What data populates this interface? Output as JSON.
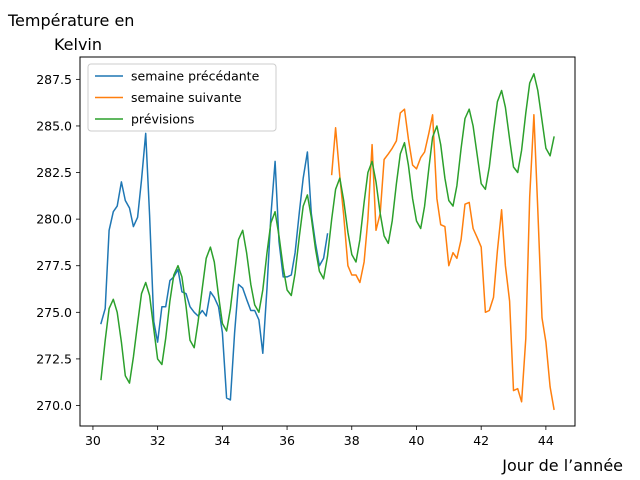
{
  "chart_data": {
    "type": "line",
    "ylabel_line1": "Température en",
    "ylabel_line2": "Kelvin",
    "xlabel": "Jour de l’année",
    "xlim": [
      29.6,
      44.9
    ],
    "ylim": [
      268.9,
      288.7
    ],
    "xticks": [
      30,
      32,
      34,
      36,
      38,
      40,
      42,
      44
    ],
    "yticks": [
      270.0,
      272.5,
      275.0,
      277.5,
      280.0,
      282.5,
      285.0,
      287.5
    ],
    "grid": false,
    "legend": "top-left",
    "series": [
      {
        "name": "semaine précédante",
        "color": "#1f77b4",
        "points": [
          [
            30.25,
            274.4
          ],
          [
            30.38,
            275.2
          ],
          [
            30.5,
            279.4
          ],
          [
            30.63,
            280.4
          ],
          [
            30.75,
            280.7
          ],
          [
            30.88,
            282.0
          ],
          [
            31.0,
            281.0
          ],
          [
            31.13,
            280.6
          ],
          [
            31.25,
            279.6
          ],
          [
            31.38,
            280.1
          ],
          [
            31.5,
            282.1
          ],
          [
            31.63,
            284.6
          ],
          [
            31.75,
            280.2
          ],
          [
            31.88,
            274.5
          ],
          [
            32.0,
            273.4
          ],
          [
            32.13,
            275.3
          ],
          [
            32.25,
            275.3
          ],
          [
            32.38,
            276.7
          ],
          [
            32.5,
            276.9
          ],
          [
            32.63,
            277.3
          ],
          [
            32.75,
            276.1
          ],
          [
            32.88,
            276.0
          ],
          [
            33.0,
            275.3
          ],
          [
            33.13,
            275.0
          ],
          [
            33.25,
            274.8
          ],
          [
            33.38,
            275.1
          ],
          [
            33.5,
            274.8
          ],
          [
            33.63,
            276.1
          ],
          [
            33.75,
            275.8
          ],
          [
            33.88,
            275.3
          ],
          [
            34.0,
            273.9
          ],
          [
            34.13,
            270.4
          ],
          [
            34.25,
            270.3
          ],
          [
            34.38,
            273.9
          ],
          [
            34.5,
            276.5
          ],
          [
            34.63,
            276.3
          ],
          [
            34.75,
            275.7
          ],
          [
            34.88,
            275.1
          ],
          [
            35.0,
            275.1
          ],
          [
            35.13,
            274.6
          ],
          [
            35.25,
            272.8
          ],
          [
            35.38,
            276.3
          ],
          [
            35.5,
            280.2
          ],
          [
            35.63,
            283.1
          ],
          [
            35.75,
            278.8
          ],
          [
            35.88,
            276.9
          ],
          [
            36.0,
            276.9
          ],
          [
            36.13,
            277.0
          ],
          [
            36.25,
            278.2
          ],
          [
            36.38,
            280.4
          ],
          [
            36.5,
            282.2
          ],
          [
            36.63,
            283.6
          ],
          [
            36.75,
            280.3
          ],
          [
            36.88,
            278.7
          ],
          [
            37.0,
            277.5
          ],
          [
            37.13,
            277.9
          ],
          [
            37.25,
            279.2
          ]
        ]
      },
      {
        "name": "semaine suivante",
        "color": "#ff7f0e",
        "points": [
          [
            37.38,
            282.4
          ],
          [
            37.5,
            284.9
          ],
          [
            37.63,
            282.3
          ],
          [
            37.75,
            280.2
          ],
          [
            37.88,
            277.5
          ],
          [
            38.0,
            277.0
          ],
          [
            38.13,
            277.0
          ],
          [
            38.25,
            276.6
          ],
          [
            38.38,
            277.7
          ],
          [
            38.5,
            280.0
          ],
          [
            38.63,
            284.0
          ],
          [
            38.75,
            279.4
          ],
          [
            38.88,
            280.3
          ],
          [
            39.0,
            283.2
          ],
          [
            39.13,
            283.5
          ],
          [
            39.25,
            283.8
          ],
          [
            39.38,
            284.2
          ],
          [
            39.5,
            285.7
          ],
          [
            39.63,
            285.9
          ],
          [
            39.75,
            284.3
          ],
          [
            39.88,
            282.9
          ],
          [
            40.0,
            282.7
          ],
          [
            40.13,
            283.3
          ],
          [
            40.25,
            283.6
          ],
          [
            40.38,
            284.6
          ],
          [
            40.5,
            285.6
          ],
          [
            40.63,
            281.1
          ],
          [
            40.75,
            279.7
          ],
          [
            40.88,
            279.6
          ],
          [
            41.0,
            277.5
          ],
          [
            41.13,
            278.2
          ],
          [
            41.25,
            277.9
          ],
          [
            41.38,
            278.9
          ],
          [
            41.5,
            280.8
          ],
          [
            41.63,
            280.9
          ],
          [
            41.75,
            279.5
          ],
          [
            41.88,
            279.0
          ],
          [
            42.0,
            278.5
          ],
          [
            42.13,
            275.0
          ],
          [
            42.25,
            275.1
          ],
          [
            42.38,
            275.8
          ],
          [
            42.5,
            278.3
          ],
          [
            42.63,
            280.5
          ],
          [
            42.75,
            277.5
          ],
          [
            42.88,
            275.6
          ],
          [
            43.0,
            270.8
          ],
          [
            43.13,
            270.9
          ],
          [
            43.25,
            270.2
          ],
          [
            43.38,
            273.6
          ],
          [
            43.5,
            281.2
          ],
          [
            43.63,
            285.6
          ],
          [
            43.75,
            280.5
          ],
          [
            43.88,
            274.7
          ],
          [
            44.0,
            273.4
          ],
          [
            44.13,
            271.0
          ],
          [
            44.25,
            269.8
          ]
        ]
      },
      {
        "name": "prévisions",
        "color": "#2ca02c",
        "points": [
          [
            30.25,
            271.4
          ],
          [
            30.38,
            273.5
          ],
          [
            30.5,
            275.2
          ],
          [
            30.63,
            275.7
          ],
          [
            30.75,
            275.0
          ],
          [
            30.88,
            273.4
          ],
          [
            31.0,
            271.6
          ],
          [
            31.13,
            271.2
          ],
          [
            31.25,
            272.6
          ],
          [
            31.38,
            274.4
          ],
          [
            31.5,
            276.0
          ],
          [
            31.63,
            276.6
          ],
          [
            31.75,
            275.9
          ],
          [
            31.88,
            274.1
          ],
          [
            32.0,
            272.5
          ],
          [
            32.13,
            272.2
          ],
          [
            32.25,
            273.6
          ],
          [
            32.38,
            275.6
          ],
          [
            32.5,
            277.0
          ],
          [
            32.63,
            277.5
          ],
          [
            32.75,
            276.9
          ],
          [
            32.88,
            275.3
          ],
          [
            33.0,
            273.5
          ],
          [
            33.13,
            273.1
          ],
          [
            33.25,
            274.5
          ],
          [
            33.38,
            276.3
          ],
          [
            33.5,
            277.9
          ],
          [
            33.63,
            278.5
          ],
          [
            33.75,
            277.7
          ],
          [
            33.88,
            275.9
          ],
          [
            34.0,
            274.4
          ],
          [
            34.13,
            274.0
          ],
          [
            34.25,
            275.2
          ],
          [
            34.38,
            277.1
          ],
          [
            34.5,
            278.9
          ],
          [
            34.63,
            279.4
          ],
          [
            34.75,
            278.2
          ],
          [
            34.88,
            276.5
          ],
          [
            35.0,
            275.4
          ],
          [
            35.13,
            275.0
          ],
          [
            35.25,
            276.2
          ],
          [
            35.38,
            278.2
          ],
          [
            35.5,
            279.8
          ],
          [
            35.63,
            280.4
          ],
          [
            35.75,
            279.1
          ],
          [
            35.88,
            277.4
          ],
          [
            36.0,
            276.2
          ],
          [
            36.13,
            275.9
          ],
          [
            36.25,
            277.1
          ],
          [
            36.38,
            279.1
          ],
          [
            36.5,
            280.7
          ],
          [
            36.63,
            281.3
          ],
          [
            36.75,
            280.1
          ],
          [
            36.88,
            278.4
          ],
          [
            37.0,
            277.2
          ],
          [
            37.13,
            276.8
          ],
          [
            37.25,
            278.0
          ],
          [
            37.38,
            280.0
          ],
          [
            37.5,
            281.6
          ],
          [
            37.63,
            282.2
          ],
          [
            37.75,
            281.0
          ],
          [
            37.88,
            279.3
          ],
          [
            38.0,
            278.1
          ],
          [
            38.13,
            277.7
          ],
          [
            38.25,
            278.9
          ],
          [
            38.38,
            280.9
          ],
          [
            38.5,
            282.5
          ],
          [
            38.63,
            283.1
          ],
          [
            38.75,
            282.0
          ],
          [
            38.88,
            280.3
          ],
          [
            39.0,
            279.1
          ],
          [
            39.13,
            278.7
          ],
          [
            39.25,
            279.9
          ],
          [
            39.38,
            281.9
          ],
          [
            39.5,
            283.5
          ],
          [
            39.63,
            284.1
          ],
          [
            39.75,
            282.9
          ],
          [
            39.88,
            281.1
          ],
          [
            40.0,
            279.9
          ],
          [
            40.13,
            279.5
          ],
          [
            40.25,
            280.7
          ],
          [
            40.38,
            282.7
          ],
          [
            40.5,
            284.4
          ],
          [
            40.63,
            285.0
          ],
          [
            40.75,
            284.0
          ],
          [
            40.88,
            282.2
          ],
          [
            41.0,
            281.0
          ],
          [
            41.13,
            280.7
          ],
          [
            41.25,
            281.8
          ],
          [
            41.38,
            283.8
          ],
          [
            41.5,
            285.4
          ],
          [
            41.63,
            285.9
          ],
          [
            41.75,
            285.0
          ],
          [
            41.88,
            283.4
          ],
          [
            42.0,
            281.9
          ],
          [
            42.13,
            281.6
          ],
          [
            42.25,
            282.8
          ],
          [
            42.38,
            284.7
          ],
          [
            42.5,
            286.3
          ],
          [
            42.63,
            286.9
          ],
          [
            42.75,
            286.0
          ],
          [
            42.88,
            284.3
          ],
          [
            43.0,
            282.8
          ],
          [
            43.13,
            282.5
          ],
          [
            43.25,
            283.7
          ],
          [
            43.38,
            285.7
          ],
          [
            43.5,
            287.3
          ],
          [
            43.63,
            287.8
          ],
          [
            43.75,
            286.9
          ],
          [
            43.88,
            285.3
          ],
          [
            44.0,
            283.8
          ],
          [
            44.13,
            283.4
          ],
          [
            44.25,
            284.4
          ]
        ]
      }
    ]
  }
}
